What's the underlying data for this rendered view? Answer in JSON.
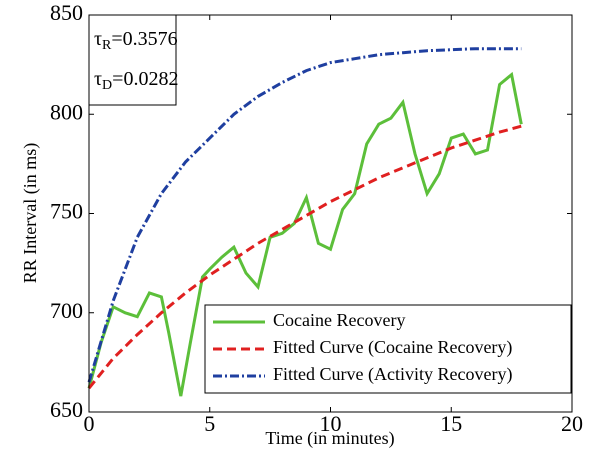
{
  "chart_data": {
    "type": "line",
    "xlabel": "Time (in minutes)",
    "ylabel": "RR Interval (in ms)",
    "xlim": [
      0,
      20
    ],
    "xticks": [
      0,
      5,
      10,
      15,
      20
    ],
    "ylim": [
      650,
      850
    ],
    "yticks": [
      650,
      700,
      750,
      800,
      850
    ],
    "grid": false,
    "legend": "lower right",
    "annotations": [
      {
        "symbol": "τ",
        "subscript": "R",
        "text": "=0.3576"
      },
      {
        "symbol": "τ",
        "subscript": "D",
        "text": "=0.0282"
      }
    ],
    "series": [
      {
        "name": "Cocaine Recovery",
        "color": "#5cbf3a",
        "linestyle": "solid",
        "x": [
          0,
          0.5,
          1,
          1.5,
          2,
          2.5,
          3,
          3.3,
          3.8,
          4.2,
          4.7,
          5,
          5.5,
          6,
          6.5,
          7,
          7.5,
          8,
          8.5,
          9,
          9.5,
          10,
          10.5,
          11,
          11.5,
          12,
          12.5,
          13,
          13.5,
          14,
          14.5,
          15,
          15.5,
          16,
          16.5,
          17,
          17.5,
          17.9
        ],
        "values": [
          662,
          685,
          703,
          700,
          698,
          710,
          708,
          690,
          658,
          685,
          718,
          722,
          728,
          733,
          720,
          713,
          738,
          740,
          745,
          758,
          735,
          732,
          752,
          760,
          785,
          795,
          798,
          806,
          780,
          760,
          770,
          788,
          790,
          780,
          782,
          815,
          820,
          795
        ]
      },
      {
        "name": "Fitted Curve (Cocaine Recovery)",
        "color": "#e02020",
        "linestyle": "dashed",
        "x": [
          0,
          1,
          2,
          3,
          4,
          5,
          6,
          7,
          8,
          9,
          10,
          11,
          12,
          13,
          14,
          15,
          16,
          17,
          17.9
        ],
        "values": [
          662,
          677,
          689,
          700,
          710,
          719,
          727,
          735,
          742,
          749,
          756,
          762,
          768,
          773,
          778,
          783,
          787,
          791,
          794
        ]
      },
      {
        "name": "Fitted Curve (Activity Recovery)",
        "color": "#1f3fa0",
        "linestyle": "dashdot",
        "x": [
          0,
          1,
          2,
          3,
          4,
          5,
          6,
          7,
          8,
          9,
          10,
          11,
          12,
          13,
          14,
          15,
          16,
          17,
          17.9
        ],
        "values": [
          665,
          706,
          738,
          760,
          776,
          788,
          800,
          809,
          816,
          822,
          826,
          828,
          830,
          831,
          832,
          832.5,
          833,
          833,
          833
        ]
      }
    ]
  }
}
